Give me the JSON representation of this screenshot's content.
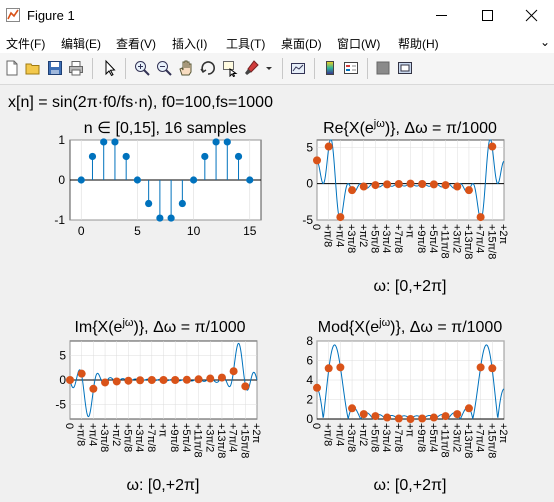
{
  "window": {
    "title": "Figure 1"
  },
  "menu": [
    "文件(F)",
    "编辑(E)",
    "查看(V)",
    "插入(I)",
    "工具(T)",
    "桌面(D)",
    "窗口(W)",
    "帮助(H)"
  ],
  "menu_overflow": "⌄",
  "toolbar": [
    "new-figure-icon",
    "open-file-icon",
    "save-icon",
    "print-icon",
    "edit-plot-arrow-icon",
    "zoom-in-icon",
    "zoom-out-icon",
    "pan-hand-icon",
    "rotate-3d-icon",
    "data-cursor-icon",
    "brush-icon",
    "brush-dropdown-icon",
    "link-plot-icon",
    "colorbar-icon",
    "legend-icon",
    "hide-plot-tools-icon",
    "show-plot-tools-icon"
  ],
  "figure_title": "x[n] = sin(2π·f0/fs·n), f0=100,fs=1000",
  "colors": {
    "stem": "#0072BD",
    "marker": "#D95319",
    "curve": "#0072BD",
    "axis_bg": "#ffffff",
    "grid": "#dcdcdc"
  },
  "omega_ticks": [
    "0",
    "+π/8",
    "+π/4",
    "+3π/8",
    "+π/2",
    "+5π/8",
    "+3π/4",
    "+7π/8",
    "+π",
    "+9π/8",
    "+5π/4",
    "+11π/8",
    "+3π/2",
    "+13π/8",
    "+7π/4",
    "+15π/8",
    "+2π"
  ],
  "omega_xlabel": "ω: [0,+2π]",
  "chart_data": [
    {
      "type": "stem",
      "title": "n ∈ [0,15], 16 samples",
      "x": [
        0,
        1,
        2,
        3,
        4,
        5,
        6,
        7,
        8,
        9,
        10,
        11,
        12,
        13,
        14,
        15
      ],
      "y": [
        0,
        0.588,
        0.951,
        0.951,
        0.588,
        0,
        -0.588,
        -0.951,
        -0.951,
        -0.588,
        0,
        0.588,
        0.951,
        0.951,
        0.588,
        0
      ],
      "xlim": [
        -1,
        16
      ],
      "ylim": [
        -1,
        1
      ],
      "xticks": [
        0,
        5,
        10,
        15
      ],
      "yticks": [
        -1,
        0,
        1
      ],
      "grid": true
    },
    {
      "type": "line",
      "title_main": "Re{X(e",
      "title_sup": "jω",
      "title_tail": ")}, Δω = π/1000",
      "series": "real part",
      "samples": [
        3.2,
        5.1,
        -4.6,
        -0.9,
        -0.4,
        -0.2,
        -0.1,
        -0.05,
        0,
        -0.05,
        -0.1,
        -0.2,
        -0.4,
        -0.9,
        -4.6,
        5.1
      ],
      "ylim": [
        -5,
        6
      ],
      "yticks": [
        -5,
        0,
        5
      ],
      "grid": true
    },
    {
      "type": "line",
      "title_main": "Im{X(e",
      "title_sup": "jω",
      "title_tail": ")}, Δω = π/1000",
      "series": "imaginary part",
      "samples": [
        0,
        1.3,
        -1.8,
        -0.5,
        -0.3,
        -0.15,
        -0.05,
        0,
        0,
        0,
        0.05,
        0.15,
        0.3,
        0.5,
        1.8,
        -1.3
      ],
      "ylim": [
        -8,
        8
      ],
      "yticks": [
        -5,
        0,
        5
      ],
      "grid": true
    },
    {
      "type": "line",
      "title_main": "Mod{X(e",
      "title_sup": "jω",
      "title_tail": ")}, Δω = π/1000",
      "series": "magnitude",
      "samples": [
        3.2,
        5.2,
        5.3,
        1.1,
        0.5,
        0.3,
        0.15,
        0.05,
        0,
        0.05,
        0.15,
        0.3,
        0.5,
        1.1,
        5.3,
        5.2
      ],
      "ylim": [
        0,
        8
      ],
      "yticks": [
        0,
        2,
        4,
        6,
        8
      ],
      "grid": true
    }
  ]
}
